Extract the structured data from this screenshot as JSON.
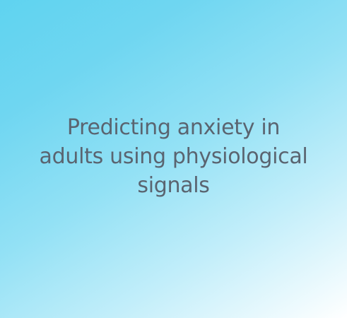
{
  "card": {
    "title": "Predicting anxiety in adults using physiological signals"
  },
  "colors": {
    "gradient_start": "#5fd3f0",
    "gradient_end": "#ffffff",
    "text": "#5a6470"
  }
}
